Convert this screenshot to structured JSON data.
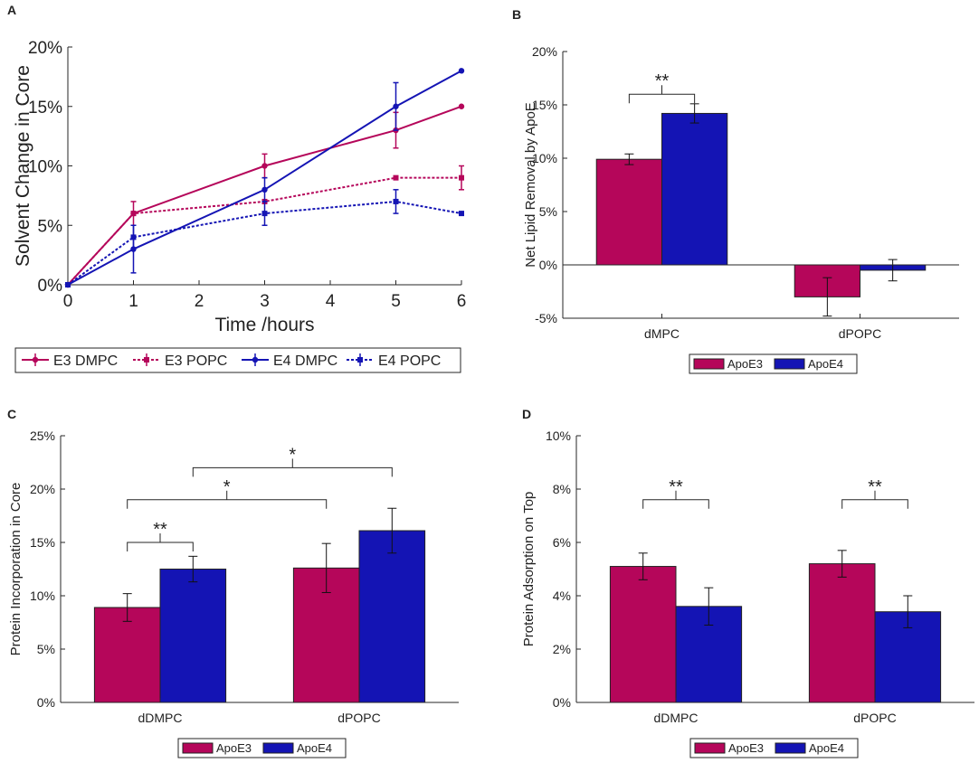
{
  "colors": {
    "apoe3": "#b5065a",
    "apoe4": "#1414b4",
    "axis": "#262626"
  },
  "chart_data": [
    {
      "id": "A",
      "panel_label": "A",
      "type": "line",
      "xlabel": "Time /hours",
      "ylabel": "Solvent Change in Core",
      "xlim": [
        0,
        6
      ],
      "ylim": [
        0,
        20
      ],
      "xticks": [
        "0",
        "1",
        "2",
        "3",
        "4",
        "5",
        "6"
      ],
      "yticks": [
        "0%",
        "5%",
        "10%",
        "15%",
        "20%"
      ],
      "series": [
        {
          "name": "E3 DMPC",
          "color": "#b5065a",
          "dashed": false,
          "marker": "circle",
          "x": [
            0,
            1,
            3,
            5,
            6
          ],
          "y": [
            0,
            6,
            10,
            13,
            15
          ],
          "err": [
            0,
            1,
            1,
            1.5,
            0
          ]
        },
        {
          "name": "E3 POPC",
          "color": "#b5065a",
          "dashed": true,
          "marker": "square",
          "x": [
            0,
            1,
            3,
            5,
            6
          ],
          "y": [
            0,
            6,
            7,
            9,
            9
          ],
          "err": [
            0,
            0,
            0,
            0,
            1
          ]
        },
        {
          "name": "E4 DMPC",
          "color": "#1414b4",
          "dashed": false,
          "marker": "circle",
          "x": [
            0,
            1,
            3,
            5,
            6
          ],
          "y": [
            0,
            3,
            8,
            15,
            18
          ],
          "err": [
            0,
            2,
            1,
            2,
            0
          ]
        },
        {
          "name": "E4 POPC",
          "color": "#1414b4",
          "dashed": true,
          "marker": "square",
          "x": [
            0,
            1,
            3,
            5,
            6
          ],
          "y": [
            0,
            4,
            6,
            7,
            6
          ],
          "err": [
            0,
            1,
            1,
            1,
            0
          ]
        }
      ],
      "legend": [
        "E3 DMPC",
        "E3 POPC",
        "E4 DMPC",
        "E4 POPC"
      ]
    },
    {
      "id": "B",
      "panel_label": "B",
      "type": "bar",
      "ylabel": "Net Lipid Removal by ApoE",
      "ylim": [
        -5,
        20
      ],
      "yticks": [
        "-5%",
        "0%",
        "5%",
        "10%",
        "15%",
        "20%"
      ],
      "categories": [
        "dMPC",
        "dPOPC"
      ],
      "series": [
        {
          "name": "ApoE3",
          "values": [
            9.9,
            -3.0
          ],
          "err": [
            0.5,
            1.8
          ]
        },
        {
          "name": "ApoE4",
          "values": [
            14.2,
            -0.5
          ],
          "err": [
            0.9,
            1.0
          ]
        }
      ],
      "significance": [
        {
          "label": "**",
          "from": [
            0,
            0
          ],
          "to": [
            0,
            1
          ],
          "y": 16.0
        }
      ],
      "legend": [
        "ApoE3",
        "ApoE4"
      ]
    },
    {
      "id": "C",
      "panel_label": "C",
      "type": "bar",
      "ylabel": "Protein Incorporation in Core",
      "ylim": [
        0,
        25
      ],
      "yticks": [
        "0%",
        "5%",
        "10%",
        "15%",
        "20%",
        "25%"
      ],
      "categories": [
        "dDMPC",
        "dPOPC"
      ],
      "series": [
        {
          "name": "ApoE3",
          "values": [
            8.9,
            12.6
          ],
          "err": [
            1.3,
            2.3
          ]
        },
        {
          "name": "ApoE4",
          "values": [
            12.5,
            16.1
          ],
          "err": [
            1.2,
            2.1
          ]
        }
      ],
      "significance": [
        {
          "label": "**",
          "from": [
            0,
            0
          ],
          "to": [
            0,
            1
          ],
          "y": 15.0
        },
        {
          "label": "*",
          "from": [
            0,
            0
          ],
          "to": [
            1,
            0
          ],
          "y": 19.0
        },
        {
          "label": "*",
          "from": [
            0,
            1
          ],
          "to": [
            1,
            1
          ],
          "y": 22.0
        }
      ],
      "legend": [
        "ApoE3",
        "ApoE4"
      ]
    },
    {
      "id": "D",
      "panel_label": "D",
      "type": "bar",
      "ylabel": "Protein Adsorption on Top",
      "ylim": [
        0,
        10
      ],
      "yticks": [
        "0%",
        "2%",
        "4%",
        "6%",
        "8%",
        "10%"
      ],
      "categories": [
        "dDMPC",
        "dPOPC"
      ],
      "series": [
        {
          "name": "ApoE3",
          "values": [
            5.1,
            5.2
          ],
          "err": [
            0.5,
            0.5
          ]
        },
        {
          "name": "ApoE4",
          "values": [
            3.6,
            3.4
          ],
          "err": [
            0.7,
            0.6
          ]
        }
      ],
      "significance": [
        {
          "label": "**",
          "from": [
            0,
            0
          ],
          "to": [
            0,
            1
          ],
          "y": 7.6
        },
        {
          "label": "**",
          "from": [
            1,
            0
          ],
          "to": [
            1,
            1
          ],
          "y": 7.6
        }
      ],
      "legend": [
        "ApoE3",
        "ApoE4"
      ]
    }
  ]
}
